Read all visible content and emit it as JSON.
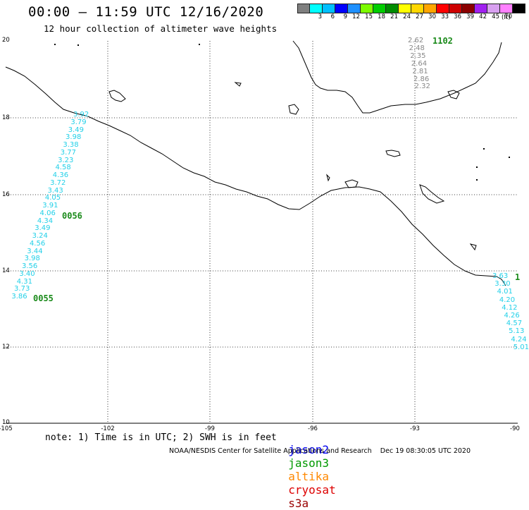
{
  "title": "00:00 – 11:59 UTC 12/16/2020",
  "subtitle": "12 hour collection of altimeter wave heights",
  "legend": {
    "unit": "(ft)",
    "colors": [
      "#7f7f7f",
      "#00ffff",
      "#00bfff",
      "#0000ff",
      "#1e90ff",
      "#7cfc00",
      "#00cd00",
      "#008b00",
      "#ffff00",
      "#ffd700",
      "#ffa500",
      "#ff0000",
      "#cd0000",
      "#8b0000",
      "#a020f0",
      "#d8a0f0",
      "#ff80ff",
      "#000000"
    ],
    "labels": [
      "",
      "3",
      "6",
      "9",
      "12",
      "15",
      "18",
      "21",
      "24",
      "27",
      "30",
      "33",
      "36",
      "39",
      "42",
      "45",
      "70",
      ""
    ]
  },
  "axes": {
    "x_ticks": [
      "-105",
      "-102",
      "-99",
      "-96",
      "-93",
      "-90"
    ],
    "y_ticks": [
      "20",
      "18",
      "16",
      "14",
      "12",
      "10"
    ]
  },
  "tracks": {
    "left_track_values": [
      "3.92",
      "3.79",
      "3.49",
      "3.98",
      "3.38",
      "3.77",
      "3.23",
      "4.58",
      "4.36",
      "3.72",
      "3.43",
      "4.05",
      "3.91",
      "4.06",
      "4.34",
      "3.49",
      "3.24",
      "4.56",
      "3.44",
      "3.98",
      "3.56",
      "3.40",
      "4.31",
      "3.73",
      "3.86"
    ],
    "right_top_values": [
      "2.62",
      "2.48",
      "2.35",
      "2.64",
      "2.81",
      "2.86",
      "2.32"
    ],
    "right_bottom_values": [
      "3.63",
      "3.30",
      "4.01",
      "4.20",
      "4.12",
      "4.26",
      "4.57",
      "5.13",
      "4.24",
      "5.01"
    ],
    "pass_times": [
      "0056",
      "0055",
      "1102",
      "1"
    ]
  },
  "note": "note: 1) Time is in UTC; 2) SWH is in feet",
  "satellites": [
    {
      "name": "jason2",
      "color": "#0000ee"
    },
    {
      "name": "jason3",
      "color": "#009900"
    },
    {
      "name": "altika",
      "color": "#ff8800"
    },
    {
      "name": "cryosat",
      "color": "#dd0000"
    },
    {
      "name": "s3a",
      "color": "#990000"
    }
  ],
  "credit": "NOAA/NESDIS Center for Satellite Applications and Research    Dec 19 08:30:05 UTC 2020"
}
